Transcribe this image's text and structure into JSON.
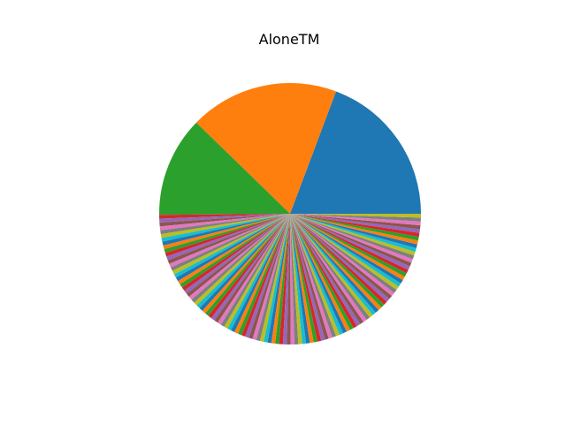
{
  "chart_data": {
    "type": "pie",
    "title": "AloneTM",
    "start_angle_deg": 0,
    "direction": "counterclockwise",
    "palette": [
      "#1f77b4",
      "#ff7f0e",
      "#2ca02c",
      "#d62728",
      "#9467bd",
      "#8c564b",
      "#e377c2",
      "#7f7f7f",
      "#bcbd22",
      "#17becf"
    ],
    "values": [
      20.5,
      19.6,
      13.2,
      0.5,
      0.5,
      0.5,
      0.5,
      0.5,
      0.5,
      0.5,
      0.5,
      0.5,
      0.5,
      0.5,
      0.5,
      0.5,
      0.5,
      0.5,
      0.5,
      0.5,
      0.5,
      0.5,
      0.5,
      0.5,
      0.5,
      0.5,
      0.5,
      0.5,
      0.5,
      0.5,
      0.5,
      0.5,
      0.5,
      0.5,
      0.5,
      0.5,
      0.5,
      0.5,
      0.5,
      0.5,
      0.5,
      0.5,
      0.5,
      0.5,
      0.5,
      0.5,
      0.5,
      0.5,
      0.5,
      0.5,
      0.5,
      0.5,
      0.5,
      0.5,
      0.5,
      0.5,
      0.5,
      0.5,
      0.5,
      0.5,
      0.5,
      0.5,
      0.5,
      0.5,
      0.5,
      0.5,
      0.5,
      0.5,
      0.5,
      0.5,
      0.5,
      0.5,
      0.5,
      0.5,
      0.5,
      0.5,
      0.5,
      0.5,
      0.5,
      0.5,
      0.5,
      0.5,
      0.5,
      0.5,
      0.5,
      0.5,
      0.5,
      0.5,
      0.5,
      0.5,
      0.5,
      0.5,
      0.5,
      0.5,
      0.5,
      0.5,
      0.5,
      0.5,
      0.5,
      0.5,
      0.5,
      0.5,
      0.5,
      0.5,
      0.5,
      0.5,
      0.5,
      0.5,
      0.5
    ]
  }
}
